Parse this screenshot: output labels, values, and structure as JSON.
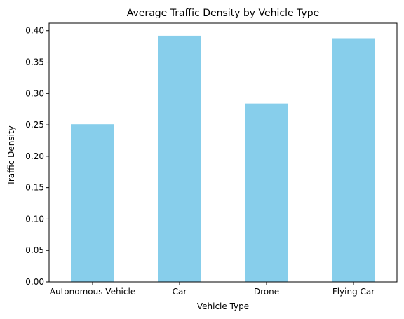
{
  "chart_data": {
    "type": "bar",
    "title": "Average Traffic Density by Vehicle Type",
    "xlabel": "Vehicle Type",
    "ylabel": "Traffic Density",
    "categories": [
      "Autonomous Vehicle",
      "Car",
      "Drone",
      "Flying Car"
    ],
    "values": [
      0.251,
      0.392,
      0.284,
      0.388
    ],
    "ylim": [
      0,
      0.412
    ],
    "yticks": [
      "0.00",
      "0.05",
      "0.10",
      "0.15",
      "0.20",
      "0.25",
      "0.30",
      "0.35",
      "0.40"
    ],
    "grid": false,
    "legend": "none",
    "bar_color": "#87ceeb"
  }
}
